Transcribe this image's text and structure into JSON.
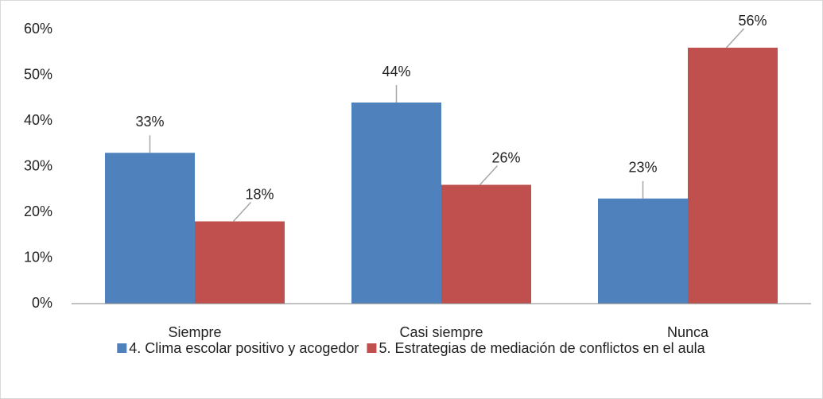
{
  "chart_data": {
    "type": "bar",
    "categories": [
      "Siempre",
      "Casi siempre",
      "Nunca"
    ],
    "series": [
      {
        "name": "4. Clima escolar positivo y acogedor",
        "color": "#4f81bd",
        "values": [
          33,
          44,
          23
        ],
        "value_labels": [
          "33%",
          "44%",
          "23%"
        ]
      },
      {
        "name": "5. Estrategias de mediación de conflictos en el aula",
        "color": "#c0504d",
        "values": [
          18,
          26,
          56
        ],
        "value_labels": [
          "18%",
          "26%",
          "56%"
        ]
      }
    ],
    "ylim": [
      0,
      60
    ],
    "yticks": [
      {
        "value": 0,
        "label": "0%"
      },
      {
        "value": 10,
        "label": "10%"
      },
      {
        "value": 20,
        "label": "20%"
      },
      {
        "value": 30,
        "label": "30%"
      },
      {
        "value": 40,
        "label": "40%"
      },
      {
        "value": 50,
        "label": "50%"
      },
      {
        "value": 60,
        "label": "60%"
      }
    ],
    "grid": false,
    "legend": "bottom"
  }
}
